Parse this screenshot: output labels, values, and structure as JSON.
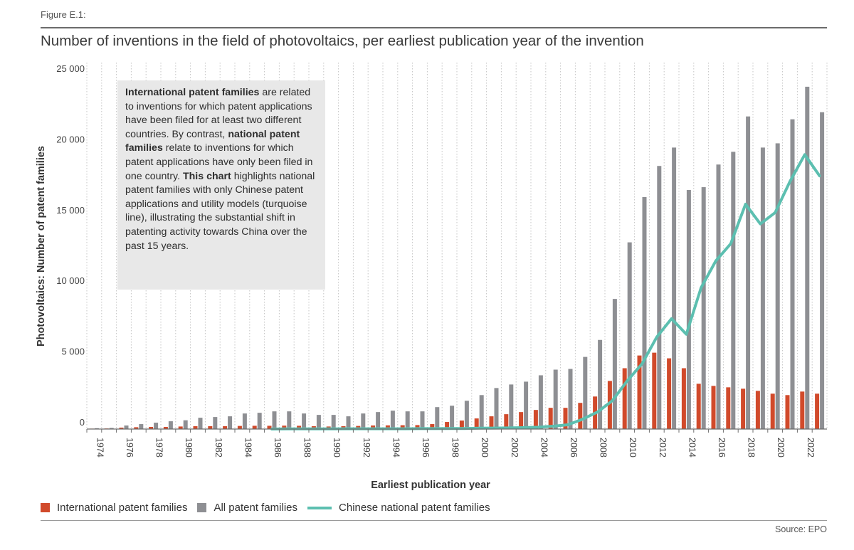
{
  "figure_label": "Figure E.1:",
  "title": "Number of inventions in the field of photovoltaics, per earliest publication year of the invention",
  "source": "Source: EPO",
  "infobox": {
    "p1_bold": "International patent families",
    "p1_rest": " are related to inventions for which patent applications have been filed for at least two different countries. By contrast, ",
    "p2_bold": "national patent families",
    "p2_rest": " relate to inventions for which patent applications have only been filed in one country. ",
    "p3_bold": "This chart",
    "p3_rest": " highlights national patent families with only Chinese patent applications and utility models (turquoise line), illustrating the substantial shift in patenting activity towards China over the past 15 years."
  },
  "legend": [
    {
      "label": "International patent families",
      "color": "#d14a2b",
      "kind": "bar"
    },
    {
      "label": "All patent families",
      "color": "#8e8f93",
      "kind": "bar"
    },
    {
      "label": "Chinese national patent families",
      "color": "#5cbfb0",
      "kind": "line"
    }
  ],
  "chart_data": {
    "type": "bar",
    "xlabel": "Earliest publication year",
    "ylabel": "Photovoltaics: Number of patent families",
    "ylim": [
      0,
      25000
    ],
    "yticks": [
      0,
      5000,
      10000,
      15000,
      20000,
      25000
    ],
    "ytick_labels": [
      "0",
      "5 000",
      "10 000",
      "15 000",
      "20 000",
      "25 000"
    ],
    "xtick_labels": [
      "1974",
      "1976",
      "1978",
      "1980",
      "1982",
      "1984",
      "1986",
      "1988",
      "1990",
      "1992",
      "1994",
      "1996",
      "1998",
      "2000",
      "2002",
      "2004",
      "2006",
      "2008",
      "2010",
      "2012",
      "2014",
      "2016",
      "2018",
      "2020",
      "2022"
    ],
    "grid": "vertical dotted",
    "legend_position": "bottom",
    "categories": [
      1974,
      1975,
      1976,
      1977,
      1978,
      1979,
      1980,
      1981,
      1982,
      1983,
      1984,
      1985,
      1986,
      1987,
      1988,
      1989,
      1990,
      1991,
      1992,
      1993,
      1994,
      1995,
      1996,
      1997,
      1998,
      1999,
      2000,
      2001,
      2002,
      2003,
      2004,
      2005,
      2006,
      2007,
      2008,
      2009,
      2010,
      2011,
      2012,
      2013,
      2014,
      2015,
      2016,
      2017,
      2018,
      2019,
      2020,
      2021,
      2022,
      2023
    ],
    "series": [
      {
        "name": "All patent families",
        "type": "bar",
        "color": "#8e8f93",
        "values": [
          60,
          80,
          250,
          350,
          450,
          550,
          620,
          800,
          850,
          900,
          1100,
          1150,
          1250,
          1250,
          1100,
          1000,
          1000,
          900,
          1100,
          1200,
          1300,
          1250,
          1250,
          1550,
          1650,
          2000,
          2400,
          2900,
          3150,
          3350,
          3800,
          4200,
          4250,
          5100,
          6300,
          9200,
          13200,
          16400,
          18600,
          19900,
          16900,
          17100,
          18700,
          19600,
          22100,
          19900,
          20200,
          21900,
          24200,
          22400
        ]
      },
      {
        "name": "International patent families",
        "type": "bar",
        "color": "#d14a2b",
        "values": [
          30,
          40,
          100,
          130,
          150,
          150,
          180,
          200,
          200,
          200,
          220,
          230,
          230,
          240,
          230,
          200,
          180,
          200,
          220,
          250,
          260,
          270,
          280,
          350,
          500,
          600,
          750,
          900,
          1050,
          1200,
          1350,
          1500,
          1500,
          1850,
          2300,
          3400,
          4300,
          5200,
          5400,
          5000,
          4300,
          3200,
          3050,
          2950,
          2850,
          2700,
          2500,
          2400,
          2650,
          2500
        ]
      },
      {
        "name": "Chinese national patent families",
        "type": "line",
        "color": "#5cbfb0",
        "values": [
          null,
          null,
          null,
          null,
          null,
          null,
          null,
          null,
          null,
          null,
          null,
          null,
          0,
          10,
          10,
          10,
          10,
          20,
          20,
          20,
          20,
          20,
          30,
          30,
          40,
          40,
          60,
          70,
          80,
          100,
          130,
          200,
          300,
          700,
          1200,
          2000,
          3400,
          4600,
          6500,
          7800,
          6700,
          10000,
          11900,
          13100,
          15900,
          14500,
          15300,
          17500,
          19400,
          17900
        ]
      }
    ]
  }
}
